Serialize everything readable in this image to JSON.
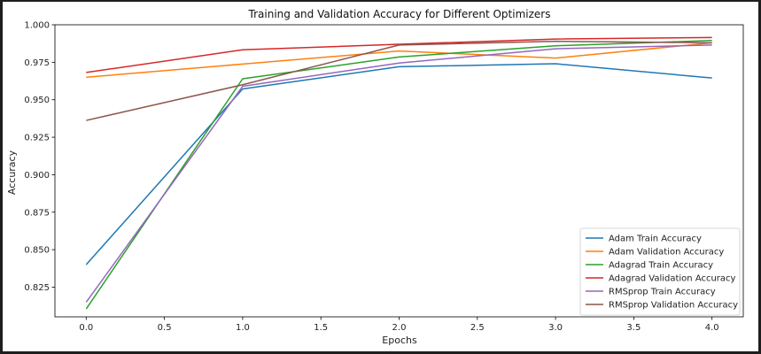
{
  "chart_data": {
    "type": "line",
    "title": "Training and Validation Accuracy for Different Optimizers",
    "xlabel": "Epochs",
    "ylabel": "Accuracy",
    "xlim": [
      -0.2,
      4.2
    ],
    "ylim": [
      0.8052,
      1.0
    ],
    "xticks": [
      0.0,
      0.5,
      1.0,
      1.5,
      2.0,
      2.5,
      3.0,
      3.5,
      4.0
    ],
    "xtick_labels": [
      "0.0",
      "0.5",
      "1.0",
      "1.5",
      "2.0",
      "2.5",
      "3.0",
      "3.5",
      "4.0"
    ],
    "yticks": [
      0.825,
      0.85,
      0.875,
      0.9,
      0.925,
      0.95,
      0.975,
      1.0
    ],
    "ytick_labels": [
      "0.825",
      "0.850",
      "0.875",
      "0.900",
      "0.925",
      "0.950",
      "0.975",
      "1.000"
    ],
    "grid": false,
    "legend_position": "lower-right",
    "x": [
      0,
      1,
      2,
      3,
      4
    ],
    "series": [
      {
        "name": "Adam Train Accuracy",
        "color": "#1f77b4",
        "values": [
          0.84,
          0.9572,
          0.972,
          0.974,
          0.9645
        ]
      },
      {
        "name": "Adam Validation Accuracy",
        "color": "#ff7f0e",
        "values": [
          0.965,
          0.9738,
          0.9825,
          0.9778,
          0.988
        ]
      },
      {
        "name": "Adagrad Train Accuracy",
        "color": "#2ca02c",
        "values": [
          0.8105,
          0.964,
          0.9785,
          0.986,
          0.9895
        ]
      },
      {
        "name": "Adagrad Validation Accuracy",
        "color": "#d62728",
        "values": [
          0.9682,
          0.9833,
          0.987,
          0.9905,
          0.9915
        ]
      },
      {
        "name": "RMSprop Train Accuracy",
        "color": "#9467bd",
        "values": [
          0.815,
          0.959,
          0.9745,
          0.984,
          0.9865
        ]
      },
      {
        "name": "RMSprop Validation Accuracy",
        "color": "#8c564b",
        "values": [
          0.9362,
          0.96,
          0.9865,
          0.989,
          0.988
        ]
      }
    ]
  }
}
